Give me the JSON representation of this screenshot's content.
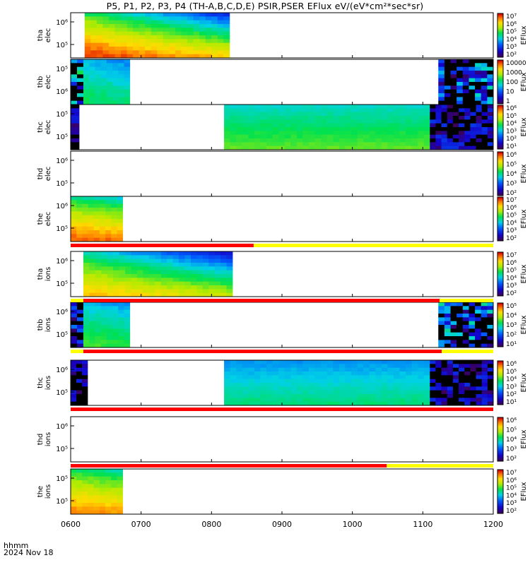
{
  "title": "P5, P1, P2, P3, P4 (TH-A,B,C,D,E) PSIR,PSER EFlux eV/(eV*cm²*sec*sr)",
  "footer": {
    "time_label": "hhmm",
    "date_label": "2024 Nov 18"
  },
  "x_ticks": [
    "0600",
    "0700",
    "0800",
    "0900",
    "1000",
    "1100",
    "1200"
  ],
  "chart_data": {
    "type": "heatmap",
    "x_range": [
      "0600",
      "1200"
    ],
    "panels": [
      {
        "id": "tha-elec",
        "ylabel": [
          "tha",
          "elec"
        ],
        "yticks": [
          "10⁶",
          "10⁵"
        ],
        "cbar_label": "EFlux",
        "cbar_ticks": [
          "10⁷",
          "10⁶",
          "10⁵",
          "10⁴",
          "10³",
          "10²"
        ],
        "cbar_range": [
          2,
          7
        ],
        "blocks": [
          {
            "x": [
              0.033,
              0.376
            ],
            "mode": "grad",
            "hi": 6.8,
            "lo": 4.8,
            "decay": 1.8
          }
        ]
      },
      {
        "id": "thb-elec",
        "ylabel": [
          "thb",
          "elec"
        ],
        "yticks": [
          "10⁵",
          "10⁶"
        ],
        "cbar_label": "EFlux",
        "cbar_ticks": [
          "10000",
          "1000",
          "100",
          "10",
          "1"
        ],
        "cbar_range": [
          0,
          4.6
        ],
        "blocks": [
          {
            "x": [
              0.0,
              0.03
            ],
            "mode": "noise",
            "lo": 0.4,
            "hi": 2.6
          },
          {
            "x": [
              0.03,
              0.14
            ],
            "mode": "grad",
            "hi": 2.5,
            "lo": 1.8,
            "decay": 0.3
          },
          {
            "x": [
              0.87,
              1.0
            ],
            "mode": "noise",
            "lo": 0.0,
            "hi": 2.2
          }
        ]
      },
      {
        "id": "thc-elec",
        "ylabel": [
          "thc",
          "elec"
        ],
        "yticks": [
          "10⁵",
          "10⁵"
        ],
        "cbar_label": "EFlux",
        "cbar_ticks": [
          "10⁶",
          "10⁵",
          "10⁴",
          "10³",
          "10²",
          "10¹"
        ],
        "cbar_range": [
          0.5,
          6.5
        ],
        "blocks": [
          {
            "x": [
              0.0,
              0.02
            ],
            "mode": "noise",
            "lo": 0.5,
            "hi": 1.6
          },
          {
            "x": [
              0.363,
              0.85
            ],
            "mode": "vert",
            "lo": 3.2,
            "hi": 4.2
          },
          {
            "x": [
              0.85,
              1.0
            ],
            "mode": "noise",
            "lo": 0.5,
            "hi": 1.8
          }
        ]
      },
      {
        "id": "thd-elec",
        "ylabel": [
          "thd",
          "elec"
        ],
        "yticks": [
          "10⁶",
          "10⁵"
        ],
        "cbar_label": "EFlux",
        "cbar_ticks": [
          "10⁶",
          "10⁵",
          "10⁴",
          "10³",
          "10²"
        ],
        "cbar_range": [
          1.5,
          6.5
        ],
        "blocks": []
      },
      {
        "id": "the-elec",
        "ylabel": [
          "the",
          "elec"
        ],
        "yticks": [
          "10⁶",
          "10⁵"
        ],
        "cbar_label": "EFlux",
        "cbar_ticks": [
          "10⁷",
          "10⁶",
          "10⁵",
          "10⁴",
          "10³",
          "10²"
        ],
        "cbar_range": [
          2,
          7.5
        ],
        "blocks": [
          {
            "x": [
              0.0,
              0.123
            ],
            "mode": "grad",
            "hi": 7.1,
            "lo": 4.8,
            "decay": 0.4
          }
        ]
      },
      {
        "id": "tha-ions",
        "ylabel": [
          "tha",
          "ions"
        ],
        "yticks": [
          "10⁶",
          "10⁵"
        ],
        "cbar_label": "EFlux",
        "cbar_ticks": [
          "10⁷",
          "10⁶",
          "10⁵",
          "10⁴",
          "10³",
          "10²"
        ],
        "cbar_range": [
          2,
          7.5
        ],
        "blocks": [
          {
            "x": [
              0.03,
              0.383
            ],
            "mode": "grad",
            "hi": 6.6,
            "lo": 4.6,
            "decay": 1.8
          }
        ]
      },
      {
        "id": "thb-ions",
        "ylabel": [
          "thb",
          "ions"
        ],
        "yticks": [
          "10⁶",
          "10⁵"
        ],
        "cbar_label": "EFlux",
        "cbar_ticks": [
          "10⁵",
          "10⁴",
          "10³",
          "10²",
          "10¹"
        ],
        "cbar_range": [
          0.5,
          5.5
        ],
        "blocks": [
          {
            "x": [
              0.0,
              0.03
            ],
            "mode": "noise",
            "lo": 0.5,
            "hi": 2.5
          },
          {
            "x": [
              0.03,
              0.14
            ],
            "mode": "grad",
            "hi": 3.5,
            "lo": 2.5,
            "decay": 0.3
          },
          {
            "x": [
              0.87,
              1.0
            ],
            "mode": "noise",
            "lo": 0.5,
            "hi": 3.0
          }
        ]
      },
      {
        "id": "thc-ions",
        "ylabel": [
          "thc",
          "ions"
        ],
        "yticks": [
          "10⁶",
          "10⁵"
        ],
        "cbar_label": "EFlux",
        "cbar_ticks": [
          "10⁶",
          "10⁵",
          "10⁴",
          "10³",
          "10²",
          "10¹"
        ],
        "cbar_range": [
          0.5,
          6.5
        ],
        "blocks": [
          {
            "x": [
              0.0,
              0.04
            ],
            "mode": "noise",
            "lo": 0.5,
            "hi": 1.6
          },
          {
            "x": [
              0.363,
              0.85
            ],
            "mode": "vert",
            "lo": 2.6,
            "hi": 3.6
          },
          {
            "x": [
              0.85,
              1.0
            ],
            "mode": "noise",
            "lo": 0.5,
            "hi": 1.8
          }
        ]
      },
      {
        "id": "thd-ions",
        "ylabel": [
          "thd",
          "ions"
        ],
        "yticks": [
          "10⁶",
          "10⁵"
        ],
        "cbar_label": "EFlux",
        "cbar_ticks": [
          "10⁶",
          "10⁵",
          "10⁴",
          "10³",
          "10²"
        ],
        "cbar_range": [
          1.5,
          6.5
        ],
        "blocks": []
      },
      {
        "id": "the-ions",
        "ylabel": [
          "the",
          "ions"
        ],
        "yticks": [
          "10⁵",
          "10⁵"
        ],
        "cbar_label": "EFlux",
        "cbar_ticks": [
          "10⁷",
          "10⁶",
          "10⁵",
          "10⁴",
          "10³",
          "10²"
        ],
        "cbar_range": [
          2,
          7.5
        ],
        "blocks": [
          {
            "x": [
              0.0,
              0.123
            ],
            "mode": "grad",
            "hi": 6.9,
            "lo": 5.0,
            "decay": 0.4
          }
        ]
      }
    ],
    "region_bars": [
      {
        "after_panel": 4,
        "segments": [
          {
            "x": [
              0.0,
              0.433
            ],
            "color": "#ff0000"
          },
          {
            "x": [
              0.433,
              1.0
            ],
            "color": "#ffff00"
          }
        ]
      },
      {
        "after_panel": 5,
        "segments": [
          {
            "x": [
              0.0,
              0.03
            ],
            "color": "#ffff00"
          },
          {
            "x": [
              0.03,
              0.873
            ],
            "color": "#ff0000"
          },
          {
            "x": [
              0.873,
              1.0
            ],
            "color": "#ffff00"
          }
        ]
      },
      {
        "after_panel": 6,
        "segments": [
          {
            "x": [
              0.0,
              0.03
            ],
            "color": "#ffff00"
          },
          {
            "x": [
              0.03,
              0.878
            ],
            "color": "#ff0000"
          },
          {
            "x": [
              0.878,
              1.0
            ],
            "color": "#ffff00"
          }
        ]
      },
      {
        "after_panel": 7,
        "segments": [
          {
            "x": [
              0.0,
              1.0
            ],
            "color": "#ff0000"
          }
        ]
      },
      {
        "after_panel": 8,
        "segments": [
          {
            "x": [
              0.0,
              0.748
            ],
            "color": "#ff0000"
          },
          {
            "x": [
              0.748,
              1.0
            ],
            "color": "#ffff00"
          }
        ]
      }
    ]
  }
}
